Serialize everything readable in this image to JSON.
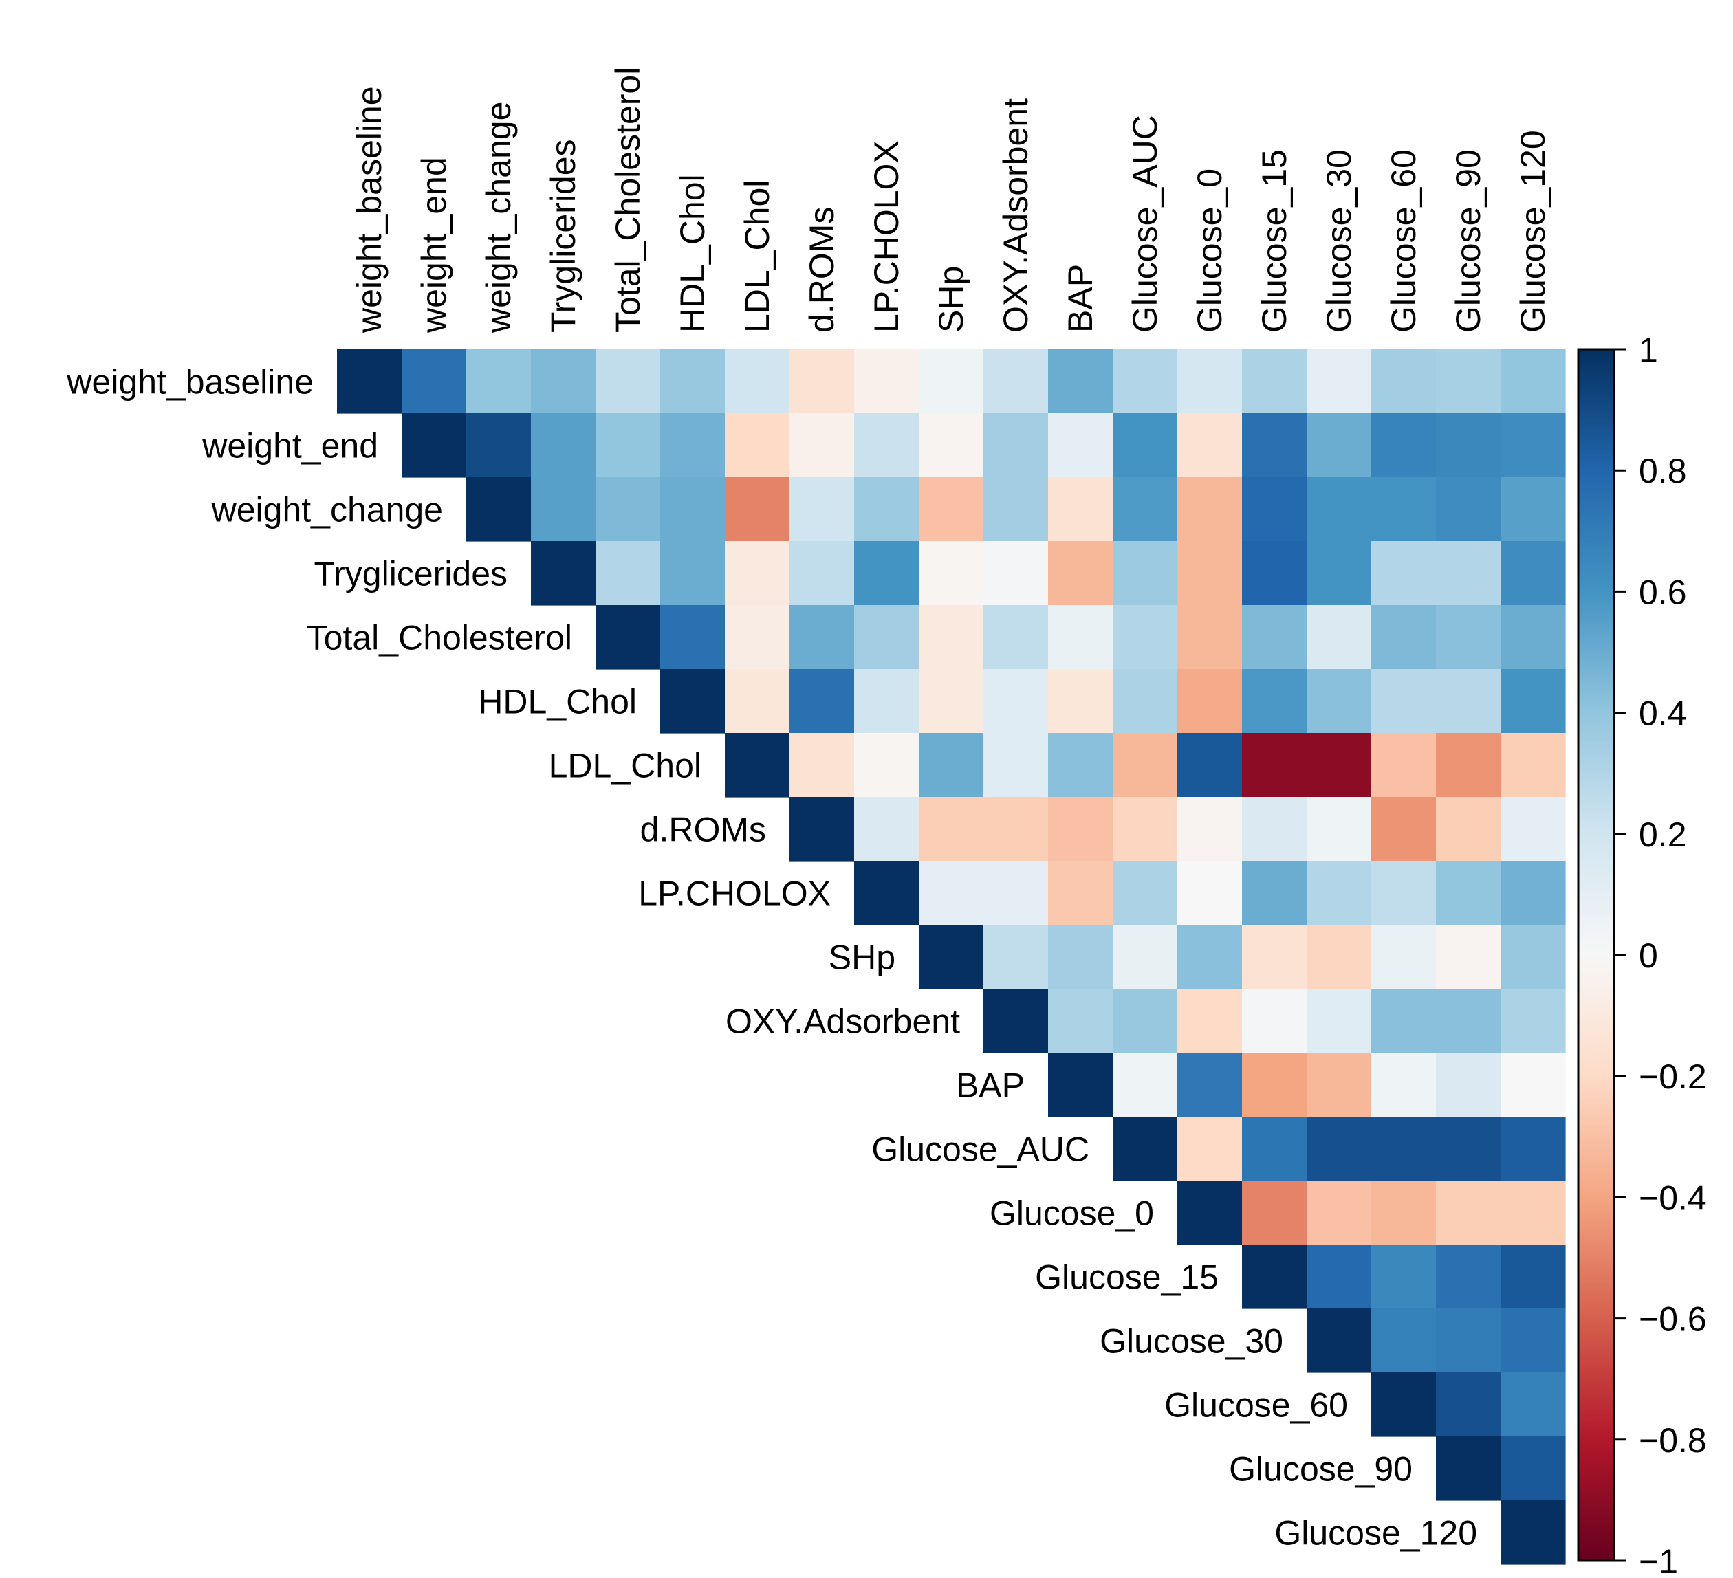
{
  "chart_data": {
    "type": "heatmap",
    "subtype": "correlation-upper-triangle",
    "variables": [
      "weight_baseline",
      "weight_end",
      "weight_change",
      "Tryglicerides",
      "Total_Cholesterol",
      "HDL_Chol",
      "LDL_Chol",
      "d.ROMs",
      "LP.CHOLOX",
      "SHp",
      "OXY.Adsorbent",
      "BAP",
      "Glucose_AUC",
      "Glucose_0",
      "Glucose_15",
      "Glucose_30",
      "Glucose_60",
      "Glucose_90",
      "Glucose_120"
    ],
    "rows": [
      [
        1,
        0.75,
        0.4,
        0.45,
        0.25,
        0.38,
        0.2,
        -0.15,
        -0.05,
        0.05,
        0.22,
        0.5,
        0.3,
        0.18,
        0.32,
        0.1,
        0.35,
        0.33,
        0.4
      ],
      [
        1,
        0.9,
        0.55,
        0.4,
        0.48,
        -0.2,
        -0.05,
        0.22,
        -0.03,
        0.35,
        0.1,
        0.6,
        -0.15,
        0.75,
        0.5,
        0.67,
        0.65,
        0.63
      ],
      [
        1,
        0.55,
        0.45,
        0.5,
        -0.5,
        0.2,
        0.37,
        -0.3,
        0.35,
        -0.15,
        0.57,
        -0.33,
        0.78,
        0.6,
        0.6,
        0.63,
        0.55
      ],
      [
        1,
        0.3,
        0.5,
        -0.1,
        0.25,
        0.6,
        -0.02,
        0.02,
        -0.33,
        0.37,
        -0.33,
        0.8,
        0.6,
        0.3,
        0.3,
        0.63
      ],
      [
        1,
        0.75,
        -0.08,
        0.5,
        0.35,
        -0.1,
        0.25,
        0.07,
        0.3,
        -0.33,
        0.45,
        0.15,
        0.45,
        0.42,
        0.5
      ],
      [
        1,
        -0.12,
        0.75,
        0.2,
        -0.1,
        0.12,
        -0.12,
        0.32,
        -0.38,
        0.58,
        0.42,
        0.28,
        0.28,
        0.6
      ],
      [
        1,
        -0.15,
        -0.02,
        0.5,
        0.12,
        0.42,
        -0.33,
        0.85,
        -0.9,
        -0.9,
        -0.3,
        -0.45,
        -0.25
      ],
      [
        1,
        0.15,
        -0.25,
        -0.25,
        -0.3,
        -0.22,
        -0.03,
        0.15,
        0.05,
        -0.45,
        -0.25,
        0.1
      ],
      [
        1,
        0.1,
        0.1,
        -0.27,
        0.32,
        0.0,
        0.5,
        0.3,
        0.25,
        0.4,
        0.48
      ],
      [
        1,
        0.25,
        0.35,
        0.08,
        0.42,
        -0.15,
        -0.22,
        0.07,
        -0.03,
        0.38
      ],
      [
        1,
        0.32,
        0.38,
        -0.2,
        0.02,
        0.12,
        0.42,
        0.42,
        0.32
      ],
      [
        1,
        0.05,
        0.72,
        -0.4,
        -0.33,
        0.05,
        0.15,
        0.0
      ],
      [
        1,
        -0.2,
        0.73,
        0.88,
        0.88,
        0.88,
        0.83
      ],
      [
        1,
        -0.5,
        -0.3,
        -0.33,
        -0.25,
        -0.25
      ],
      [
        1,
        0.78,
        0.65,
        0.75,
        0.85
      ],
      [
        1,
        0.68,
        0.7,
        0.75
      ],
      [
        1,
        0.88,
        0.68
      ],
      [
        1,
        0.85
      ],
      [
        1
      ]
    ],
    "colorbar": {
      "min": -1,
      "max": 1,
      "tick_labels": [
        "1",
        "0.8",
        "0.6",
        "0.4",
        "0.2",
        "0",
        "−0.2",
        "−0.4",
        "−0.6",
        "−0.8",
        "−1"
      ],
      "tick_values": [
        1,
        0.8,
        0.6,
        0.4,
        0.2,
        0,
        -0.2,
        -0.4,
        -0.6,
        -0.8,
        -1
      ]
    },
    "colormap": {
      "name": "RdBu",
      "stops": [
        "#67001f",
        "#b2182b",
        "#d6604d",
        "#f4a582",
        "#fddbc7",
        "#f7f7f7",
        "#d1e5f0",
        "#92c5de",
        "#4393c3",
        "#2166ac",
        "#053061"
      ]
    }
  }
}
